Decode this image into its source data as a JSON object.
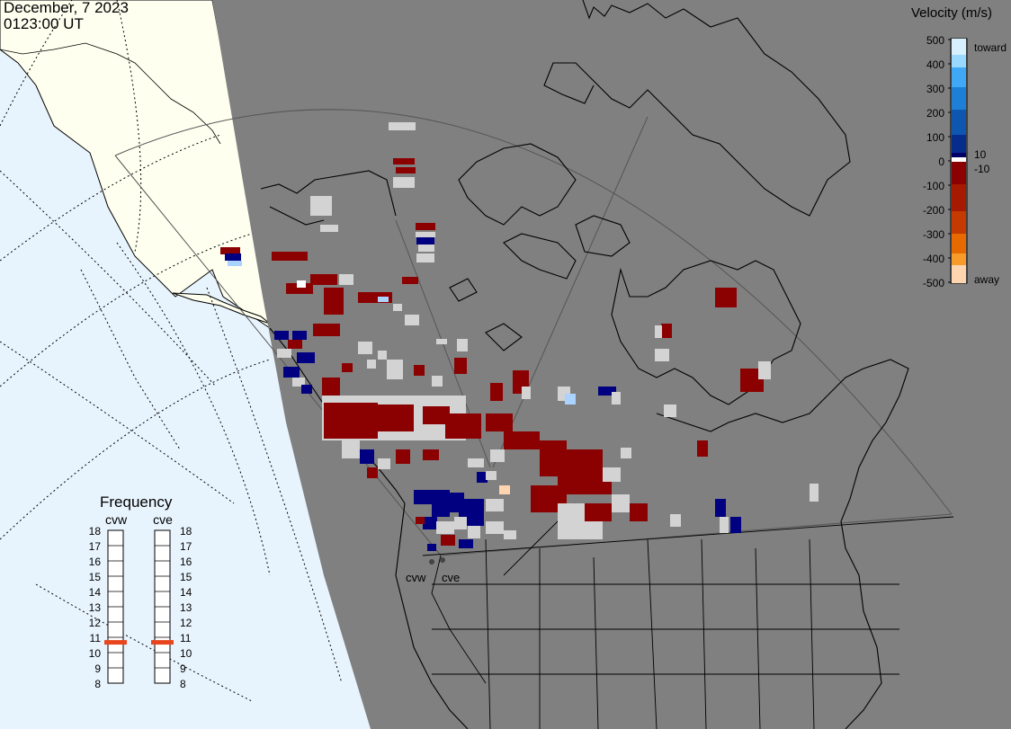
{
  "header": {
    "date": "December, 7 2023",
    "time": "0123:00 UT"
  },
  "velocity_legend": {
    "title": "Velocity (m/s)",
    "ticks": [
      "500",
      "400",
      "300",
      "200",
      "100",
      "0",
      "-100",
      "-200",
      "-300",
      "-400",
      "-500"
    ],
    "extra_labels": {
      "pos": "10",
      "neg": "-10"
    },
    "toward_label": "toward",
    "away_label": "away",
    "colors": [
      "#d6f0ff",
      "#99d9ff",
      "#3fa9f5",
      "#1e7fd6",
      "#0f56b0",
      "#062d8c",
      "#000066",
      "#ffffff",
      "#8b0000",
      "#a51a00",
      "#c43a00",
      "#e66a00",
      "#f99b2a",
      "#ffd5b0"
    ]
  },
  "frequency": {
    "title": "Frequency",
    "radars": [
      {
        "name": "cvw",
        "current_mhz": 10.7
      },
      {
        "name": "cve",
        "current_mhz": 10.7
      }
    ],
    "scale": [
      "18",
      "17",
      "16",
      "15",
      "14",
      "13",
      "12",
      "11",
      "10",
      "9",
      "8"
    ],
    "marker_color": "#e8451e"
  },
  "radar_sites": [
    {
      "label": "cvw"
    },
    {
      "label": "cve"
    }
  ],
  "map": {
    "night_color": "#808080",
    "day_ocean_color": "#e8f4fd",
    "day_land_color": "#fffff0",
    "gray_scatter_color": "#d3d3d3"
  }
}
